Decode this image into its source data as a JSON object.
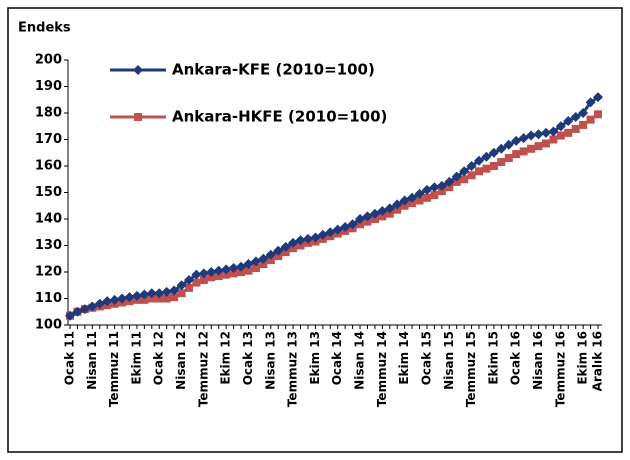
{
  "chart_data": {
    "type": "line",
    "y_label": "Endeks",
    "categories": [
      "Ocak 11",
      null,
      null,
      "Nisan 11",
      null,
      null,
      "Temmuz 11",
      null,
      null,
      "Ekim 11",
      null,
      null,
      "Ocak 12",
      null,
      null,
      "Nisan 12",
      null,
      null,
      "Temmuz 12",
      null,
      null,
      "Ekim 12",
      null,
      null,
      "Ocak 13",
      null,
      null,
      "Nisan 13",
      null,
      null,
      "Temmuz 13",
      null,
      null,
      "Ekim 13",
      null,
      null,
      "Ocak 14",
      null,
      null,
      "Nisan 14",
      null,
      null,
      "Temmuz 14",
      null,
      null,
      "Ekim 14",
      null,
      null,
      "Ocak 15",
      null,
      null,
      "Nisan 15",
      null,
      null,
      "Temmuz 15",
      null,
      null,
      "Ekim 15",
      null,
      null,
      "Ocak 16",
      null,
      null,
      "Nisan 16",
      null,
      null,
      "Temmuz 16",
      null,
      null,
      "Ekim 16",
      null,
      "Aralık 16"
    ],
    "series": [
      {
        "name": "Ankara-KFE (2010=100)",
        "color": "#1f3a7a",
        "marker": "diamond",
        "values": [
          103.5,
          105,
          106,
          107,
          108,
          109,
          109.5,
          110,
          110.5,
          111,
          111.5,
          112,
          112,
          112.5,
          113,
          115,
          117,
          119,
          119.5,
          120,
          120.5,
          121,
          121.5,
          122,
          123,
          124,
          125,
          126.5,
          128,
          129.5,
          131,
          132,
          132.5,
          133,
          134,
          135,
          136,
          137,
          138,
          140,
          141,
          142,
          143,
          144,
          145.5,
          147,
          148,
          149.5,
          151,
          152,
          152.5,
          154,
          156,
          158,
          160,
          162,
          163.5,
          165,
          166.5,
          168,
          169.5,
          170.5,
          171.5,
          172,
          172.5,
          173,
          175,
          177,
          178.5,
          180,
          184,
          186
        ]
      },
      {
        "name": "Ankara-HKFE (2010=100)",
        "color": "#c0504d",
        "marker": "square",
        "values": [
          103.5,
          105,
          106,
          106.5,
          107,
          107.5,
          108,
          108.5,
          109,
          109.5,
          109.5,
          110,
          110,
          110,
          110.5,
          112,
          114,
          116,
          117,
          118,
          118.5,
          119,
          119.5,
          120,
          120.5,
          121.5,
          123,
          124.5,
          126,
          127.5,
          129,
          130,
          131,
          131.5,
          132.5,
          133.5,
          134.5,
          135.5,
          136.5,
          138,
          139,
          140,
          141,
          142,
          143.5,
          145,
          146,
          147,
          148,
          149,
          150.5,
          152,
          154,
          155,
          156.5,
          158,
          159,
          160,
          161.5,
          163,
          164.5,
          165.5,
          166.5,
          167.5,
          168.5,
          170,
          171.5,
          172.5,
          174,
          175.5,
          177.5,
          179.5
        ]
      }
    ],
    "ylim": [
      100,
      200
    ],
    "yticks": [
      100,
      110,
      120,
      130,
      140,
      150,
      160,
      170,
      180,
      190,
      200
    ],
    "grid": false,
    "legend": "top-left"
  }
}
